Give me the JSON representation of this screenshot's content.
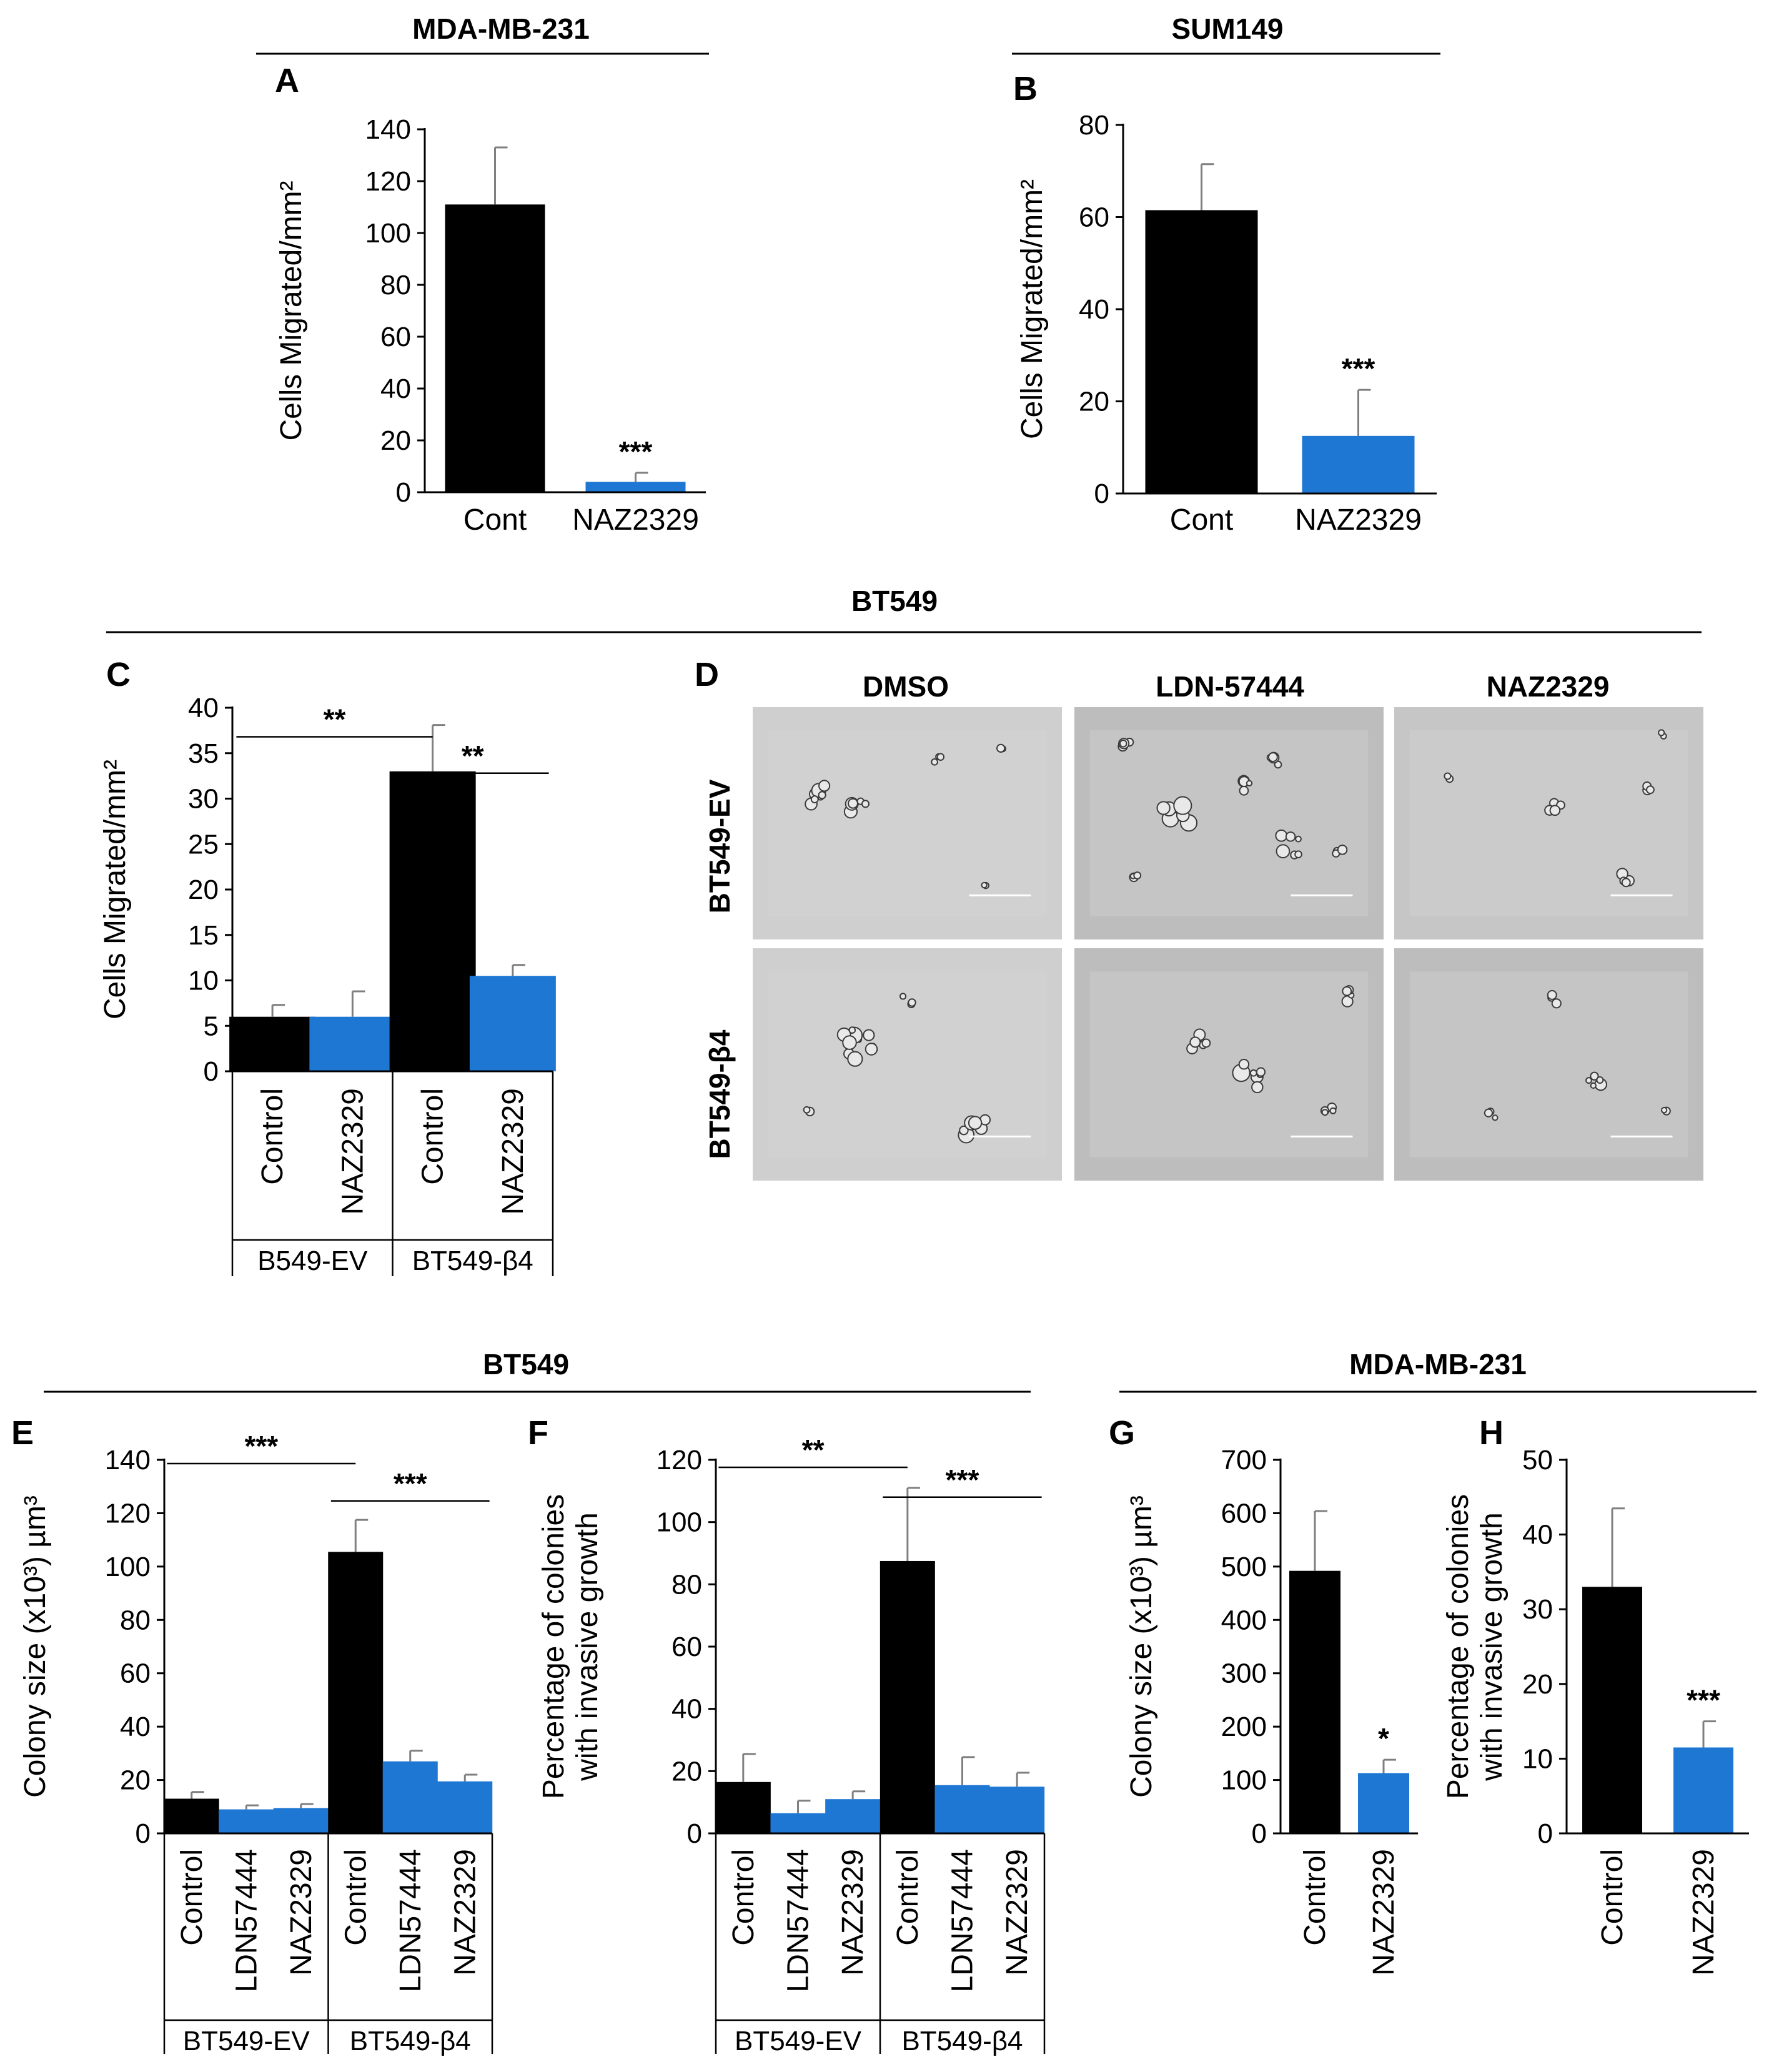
{
  "colors": {
    "control": "#000000",
    "treated": "#1f77d4"
  },
  "headers": {
    "ab_left": "MDA-MB-231",
    "ab_right": "SUM149",
    "cd": "BT549",
    "ef": "BT549",
    "gh": "MDA-MB-231"
  },
  "panel_d": {
    "letter": "D",
    "columns": [
      "DMSO",
      "LDN-57444",
      "NAZ2329"
    ],
    "rows": [
      "BT549-EV",
      "BT549-β4"
    ]
  },
  "chart_data": [
    {
      "id": "A",
      "type": "bar",
      "ylabel": "Cells Migrated/mm²",
      "ylim": [
        0,
        140
      ],
      "yticks": [
        0,
        20,
        40,
        60,
        80,
        100,
        120,
        140
      ],
      "categories": [
        "Cont",
        "NAZ2329"
      ],
      "values": [
        111,
        4
      ],
      "errors": [
        22,
        3.5
      ],
      "colors": [
        "control",
        "treated"
      ],
      "labels_rotated": false,
      "stars": [
        {
          "bar": 1,
          "text": "***"
        }
      ],
      "groups": [],
      "brackets": []
    },
    {
      "id": "B",
      "type": "bar",
      "ylabel": "Cells Migrated/mm²",
      "ylim": [
        0,
        80
      ],
      "yticks": [
        0,
        20,
        40,
        60,
        80
      ],
      "categories": [
        "Cont",
        "NAZ2329"
      ],
      "values": [
        61.5,
        12.5
      ],
      "errors": [
        10,
        10
      ],
      "colors": [
        "control",
        "treated"
      ],
      "labels_rotated": false,
      "stars": [
        {
          "bar": 1,
          "text": "***"
        }
      ],
      "groups": [],
      "brackets": []
    },
    {
      "id": "C",
      "type": "bar",
      "ylabel": "Cells Migrated/mm²",
      "ylim": [
        0,
        40
      ],
      "yticks": [
        0,
        5,
        10,
        15,
        20,
        25,
        30,
        35,
        40
      ],
      "categories": [
        "Control",
        "NAZ2329",
        "Control",
        "NAZ2329"
      ],
      "values": [
        6,
        6,
        33,
        10.5
      ],
      "errors": [
        1.3,
        2.8,
        5.1,
        1.2
      ],
      "colors": [
        "control",
        "treated",
        "control",
        "treated"
      ],
      "labels_rotated": true,
      "stars": [],
      "groups": [
        {
          "label": "B549-EV",
          "start": 0,
          "end": 1
        },
        {
          "label": "BT549-β4",
          "start": 2,
          "end": 3
        }
      ],
      "brackets": [
        {
          "from": 0,
          "to": 2,
          "text": "**",
          "level": 0.92
        },
        {
          "from": 2,
          "to": 3,
          "text": "**",
          "level": 0.82
        }
      ]
    },
    {
      "id": "E",
      "type": "bar",
      "ylabel": "Colony size (x10³) µm³",
      "ylim": [
        0,
        140
      ],
      "yticks": [
        0,
        20,
        40,
        60,
        80,
        100,
        120,
        140
      ],
      "categories": [
        "Control",
        "LDN57444",
        "NAZ2329",
        "Control",
        "LDN57444",
        "NAZ2329"
      ],
      "values": [
        13,
        9,
        9.5,
        105.5,
        27,
        19.5
      ],
      "errors": [
        2.5,
        1.5,
        1.5,
        12,
        4,
        2.5
      ],
      "colors": [
        "control",
        "treated",
        "treated",
        "control",
        "treated",
        "treated"
      ],
      "labels_rotated": true,
      "stars": [],
      "groups": [
        {
          "label": "BT549-EV",
          "start": 0,
          "end": 2
        },
        {
          "label": "BT549-β4",
          "start": 3,
          "end": 5
        }
      ],
      "brackets": [
        {
          "from": 0,
          "to": 3,
          "text": "***",
          "level": 0.99
        },
        {
          "from": 3,
          "to": 5,
          "text": "***",
          "level": 0.89
        }
      ]
    },
    {
      "id": "F",
      "type": "bar",
      "ylabel": [
        "Percentage of colonies",
        "with invasive growth"
      ],
      "ylim": [
        0,
        120
      ],
      "yticks": [
        0,
        20,
        40,
        60,
        80,
        100,
        120
      ],
      "categories": [
        "Control",
        "LDN57444",
        "NAZ2329",
        "Control",
        "LDN57444",
        "NAZ2329"
      ],
      "values": [
        16.5,
        6.5,
        11,
        87.5,
        15.5,
        15
      ],
      "errors": [
        9,
        4,
        2.5,
        23.5,
        9,
        4.5
      ],
      "colors": [
        "control",
        "treated",
        "treated",
        "control",
        "treated",
        "treated"
      ],
      "labels_rotated": true,
      "stars": [],
      "groups": [
        {
          "label": "BT549-EV",
          "start": 0,
          "end": 2
        },
        {
          "label": "BT549-β4",
          "start": 3,
          "end": 5
        }
      ],
      "brackets": [
        {
          "from": 0,
          "to": 3,
          "text": "**",
          "level": 0.98
        },
        {
          "from": 3,
          "to": 5,
          "text": "***",
          "level": 0.9
        }
      ]
    },
    {
      "id": "G",
      "type": "bar",
      "ylabel": "Colony size (x10³) µm³",
      "ylim": [
        0,
        700
      ],
      "yticks": [
        0,
        100,
        200,
        300,
        400,
        500,
        600,
        700
      ],
      "categories": [
        "Control",
        "NAZ2329"
      ],
      "values": [
        492,
        113
      ],
      "errors": [
        112,
        25
      ],
      "colors": [
        "control",
        "treated"
      ],
      "labels_rotated": true,
      "stars": [
        {
          "bar": 1,
          "text": "*"
        }
      ],
      "groups": [],
      "brackets": []
    },
    {
      "id": "H",
      "type": "bar",
      "ylabel": [
        "Percentage of colonies",
        "with invasive growth"
      ],
      "ylim": [
        0,
        50
      ],
      "yticks": [
        0,
        10,
        20,
        30,
        40,
        50
      ],
      "categories": [
        "Control",
        "NAZ2329"
      ],
      "values": [
        33,
        11.5
      ],
      "errors": [
        10.5,
        3.5
      ],
      "colors": [
        "control",
        "treated"
      ],
      "labels_rotated": true,
      "stars": [
        {
          "bar": 1,
          "text": "***"
        }
      ],
      "groups": [],
      "brackets": []
    }
  ]
}
